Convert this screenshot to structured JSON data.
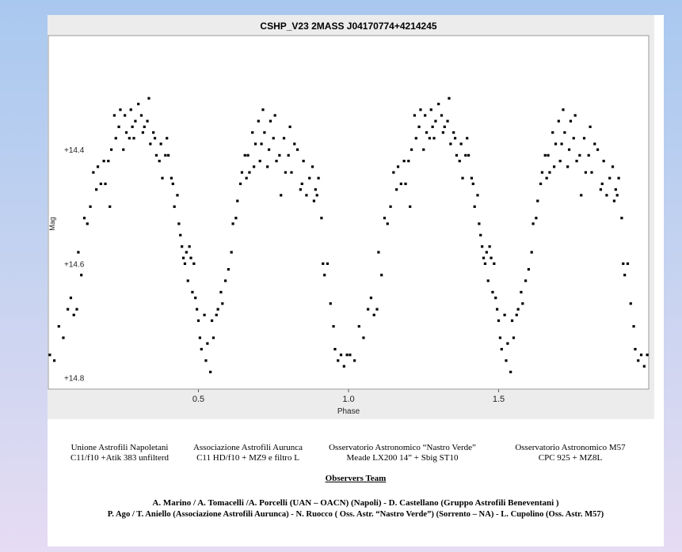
{
  "captions": [
    {
      "name": "Unione Astrofili Napoletani",
      "setup": "C11/f10 +Atik 383 unfilterd"
    },
    {
      "name": "Associazione Astrofili Aurunca",
      "setup": "C11 HD/f10 + MZ9 e filtro L"
    },
    {
      "name": "Osservatorio Astronomico “Nastro Verde”",
      "setup": "Meade LX200 14” + Sbig ST10"
    },
    {
      "name": "Osservatorio Astronomico M57",
      "setup": "CPC 925 + MZ8L"
    }
  ],
  "team": {
    "title": "Observers Team",
    "line1": "A. Marino / A. Tomacelli /A. Porcelli (UAN – OACN) (Napoli) -   D. Castellano (Gruppo Astrofili Beneventani )",
    "line2": "P. Ago / T. Aniello  (Associazione Astrofili Aurunca) - N. Ruocco ( Oss. Astr. “Nastro Verde”) (Sorrento – NA) -  L. Cupolino (Oss. Astr. M57)"
  },
  "chart_data": {
    "type": "scatter",
    "title": "CSHP_V23  2MASS J04170774+4214245",
    "xlabel": "Phase",
    "ylabel": "Mag",
    "xlim": [
      0.0,
      2.0
    ],
    "ylim": [
      14.2,
      14.82
    ],
    "y_inverted": true,
    "x_ticks": [
      "0.5",
      "1.0",
      "1.5"
    ],
    "x_tick_values": [
      0.5,
      1.0,
      1.5
    ],
    "y_ticks": [
      "+14.4",
      "+14.6",
      "+14.8"
    ],
    "y_tick_values": [
      14.4,
      14.6,
      14.8
    ],
    "grid": true,
    "point_color": "#000000",
    "series": [
      {
        "x": [
          0.005,
          0.02,
          0.035,
          0.05,
          0.065,
          0.075,
          0.085,
          0.095,
          0.1,
          0.11,
          0.12,
          0.13,
          0.14,
          0.15,
          0.16,
          0.165,
          0.175,
          0.185,
          0.19,
          0.2,
          0.205,
          0.21,
          0.22,
          0.225,
          0.235,
          0.24,
          0.25,
          0.255,
          0.26,
          0.27,
          0.275,
          0.28,
          0.285,
          0.29,
          0.3,
          0.31,
          0.315,
          0.32,
          0.33,
          0.335,
          0.34,
          0.35,
          0.355,
          0.36,
          0.37,
          0.375,
          0.38,
          0.39,
          0.395,
          0.4,
          0.41,
          0.415,
          0.42,
          0.43,
          0.435,
          0.44,
          0.445,
          0.45,
          0.455,
          0.46,
          0.465,
          0.47,
          0.475,
          0.48,
          0.485,
          0.49,
          0.495,
          0.5,
          0.505,
          0.51,
          0.52,
          0.525,
          0.53,
          0.54,
          0.545,
          0.55,
          0.56,
          0.565,
          0.575,
          0.58,
          0.59,
          0.6,
          0.61,
          0.615,
          0.625,
          0.63,
          0.64,
          0.645,
          0.655,
          0.66,
          0.665,
          0.67,
          0.68,
          0.685,
          0.69,
          0.7,
          0.705,
          0.71,
          0.715,
          0.72,
          0.73,
          0.735,
          0.74,
          0.75,
          0.755,
          0.76,
          0.77,
          0.775,
          0.785,
          0.79,
          0.8,
          0.805,
          0.81,
          0.82,
          0.83,
          0.84,
          0.845,
          0.85,
          0.86,
          0.87,
          0.88,
          0.885,
          0.89,
          0.895,
          0.9,
          0.91,
          0.915,
          0.92,
          0.93,
          0.94,
          0.95,
          0.955,
          0.965,
          0.975,
          0.985,
          0.995
        ],
        "y": [
          14.76,
          14.77,
          14.71,
          14.73,
          14.68,
          14.66,
          14.69,
          14.68,
          14.58,
          14.62,
          14.52,
          14.53,
          14.5,
          14.44,
          14.47,
          14.43,
          14.46,
          14.42,
          14.46,
          14.42,
          14.5,
          14.4,
          14.34,
          14.38,
          14.36,
          14.33,
          14.4,
          14.34,
          14.37,
          14.38,
          14.33,
          14.36,
          14.38,
          14.35,
          14.32,
          14.34,
          14.37,
          14.36,
          14.35,
          14.31,
          14.39,
          14.37,
          14.38,
          14.41,
          14.42,
          14.39,
          14.45,
          14.41,
          14.38,
          14.41,
          14.45,
          14.46,
          14.5,
          14.48,
          14.53,
          14.55,
          14.57,
          14.59,
          14.6,
          14.58,
          14.63,
          14.57,
          14.59,
          14.65,
          14.6,
          14.66,
          14.68,
          14.7,
          14.73,
          14.75,
          14.69,
          14.77,
          14.74,
          14.79,
          14.7,
          14.73,
          14.69,
          14.68,
          14.65,
          14.67,
          14.63,
          14.61,
          14.58,
          14.53,
          14.52,
          14.49,
          14.46,
          14.44,
          14.41,
          14.45,
          14.41,
          14.44,
          14.37,
          14.43,
          14.39,
          14.35,
          14.42,
          14.39,
          14.33,
          14.37,
          14.43,
          14.4,
          14.35,
          14.38,
          14.34,
          14.42,
          14.41,
          14.48,
          14.38,
          14.44,
          14.41,
          14.36,
          14.44,
          14.39,
          14.4,
          14.47,
          14.46,
          14.42,
          14.48,
          14.45,
          14.43,
          14.49,
          14.47,
          14.48,
          14.45,
          14.52,
          14.6,
          14.62,
          14.6,
          14.67,
          14.71,
          14.75,
          14.77,
          14.76,
          14.78,
          14.76
        ]
      }
    ]
  }
}
